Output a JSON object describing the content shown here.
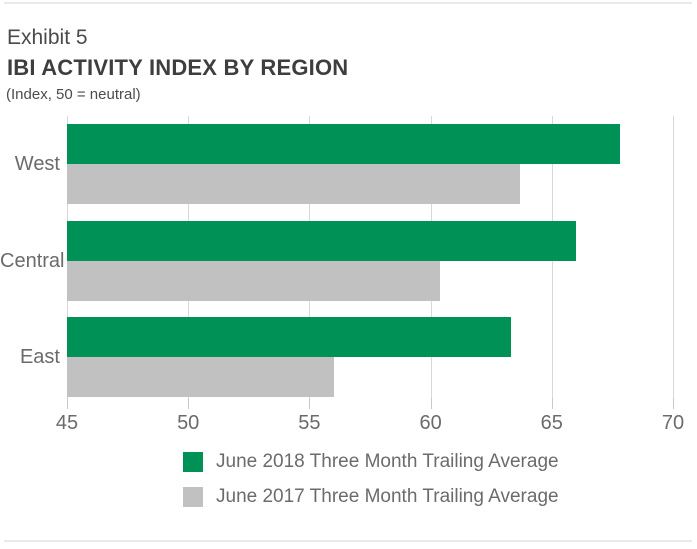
{
  "header": {
    "exhibit": "Exhibit 5",
    "title": "IBI ACTIVITY INDEX BY REGION",
    "subtitle": "(Index, 50 = neutral)"
  },
  "chart_data": {
    "type": "bar",
    "orientation": "horizontal",
    "exhibit": "Exhibit 5",
    "title": "IBI ACTIVITY INDEX BY REGION",
    "subtitle": "(Index, 50 = neutral)",
    "categories": [
      "West",
      "Central",
      "East"
    ],
    "series": [
      {
        "name": "June 2018 Three Month Trailing Average",
        "color": "#009156",
        "values": [
          67.8,
          66.0,
          63.3
        ]
      },
      {
        "name": "June 2017 Three Month Trailing Average",
        "color": "#C1C1C1",
        "values": [
          63.7,
          60.4,
          56.0
        ]
      }
    ],
    "xlim": [
      45,
      70
    ],
    "xticks": [
      45,
      50,
      55,
      60,
      65,
      70
    ],
    "grid": "vertical-only",
    "legend_position": "bottom-center"
  },
  "colors": {
    "accent_green": "#009156",
    "neutral_gray": "#C1C1C1",
    "gridline": "#D8D8D8",
    "divider": "#EAEAEA",
    "text_dark": "#3E3E3E",
    "text_medium": "#6B6B6B"
  }
}
